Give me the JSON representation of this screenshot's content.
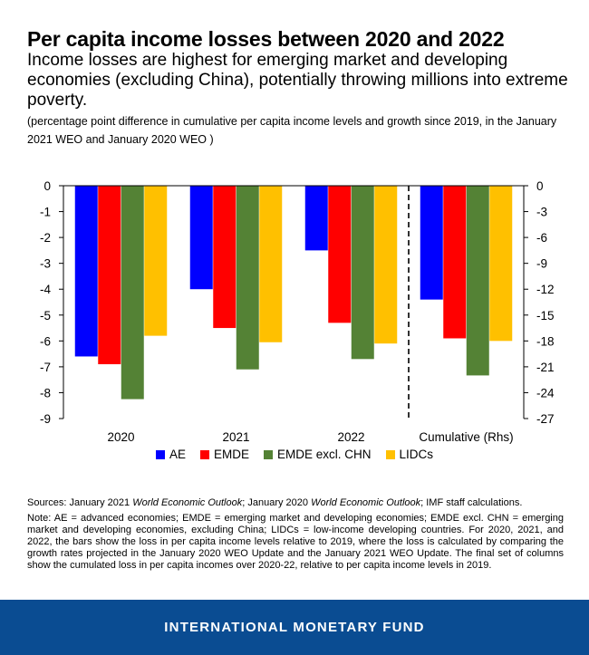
{
  "header": {
    "title": "Per capita income losses between 2020 and 2022",
    "subtitle": "Income losses are highest for emerging market and developing economies (excluding China), potentially throwing millions into extreme poverty.",
    "units_note": "(percentage point difference in cumulative per capita income levels and growth since 2019, in the January 2021 WEO and January 2020 WEO )"
  },
  "chart_data": {
    "type": "bar",
    "categories": [
      "2020",
      "2021",
      "2022",
      "Cumulative (Rhs)"
    ],
    "series": [
      {
        "name": "AE",
        "color": "#0000ff",
        "values": [
          -6.6,
          -4.0,
          -2.5,
          -13.2
        ]
      },
      {
        "name": "EMDE",
        "color": "#ff0000",
        "values": [
          -6.9,
          -5.5,
          -5.3,
          -17.7
        ]
      },
      {
        "name": "EMDE excl. CHN",
        "color": "#548235",
        "values": [
          -8.25,
          -7.1,
          -6.7,
          -22.0
        ]
      },
      {
        "name": "LIDCs",
        "color": "#ffc000",
        "values": [
          -5.8,
          -6.05,
          -6.1,
          -18.0
        ]
      }
    ],
    "left_axis": {
      "ylim": [
        -9,
        0
      ],
      "ticks": [
        "0",
        "-1",
        "-2",
        "-3",
        "-4",
        "-5",
        "-6",
        "-7",
        "-8",
        "-9"
      ]
    },
    "right_axis": {
      "ylim": [
        -27,
        0
      ],
      "ticks": [
        "0",
        "-3",
        "-6",
        "-9",
        "-12",
        "-15",
        "-18",
        "-21",
        "-24",
        "-27"
      ],
      "applies_to": "Cumulative (Rhs)"
    },
    "separator": "dashed line between 2022 and Cumulative (Rhs)",
    "legend_position": "bottom"
  },
  "sources": {
    "prefix": "Sources: January 2021 ",
    "italic1": "World Economic Outlook",
    "mid": "; January 2020 ",
    "italic2": "World Economic Outlook",
    "suffix": "; IMF staff calculations."
  },
  "notes": "Note: AE = advanced economies; EMDE = emerging market and developing economies; EMDE excl. CHN = emerging market and developing economies, excluding China; LIDCs = low-income developing countries. For 2020, 2021, and 2022, the bars show the loss in per capita income levels relative to 2019, where the loss is calculated by comparing the growth rates projected in the January 2020 WEO Update and the January 2021 WEO Update. The final set of columns show the cumulated loss in per capita incomes over 2020-22, relative to per capita income levels in 2019.",
  "footer": {
    "brand": "INTERNATIONAL MONETARY FUND"
  }
}
